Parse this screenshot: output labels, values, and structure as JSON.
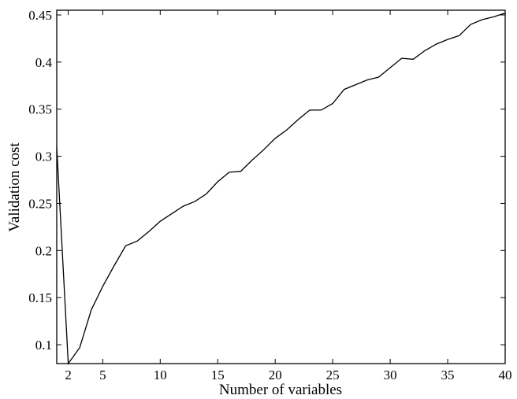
{
  "chart_data": {
    "type": "line",
    "title": "",
    "xlabel": "Number of variables",
    "ylabel": "Validation cost",
    "xlim": [
      1,
      40
    ],
    "ylim": [
      0.08,
      0.455
    ],
    "xticks": [
      2,
      5,
      10,
      15,
      20,
      25,
      30,
      35,
      40
    ],
    "yticks": [
      0.1,
      0.15,
      0.2,
      0.25,
      0.3,
      0.35,
      0.4,
      0.45
    ],
    "ytick_labels": [
      "0.1",
      "0.15",
      "0.2",
      "0.25",
      "0.3",
      "0.35",
      "0.4",
      "0.45"
    ],
    "grid": false,
    "line_color": "#000000",
    "series": [
      {
        "x": [
          1,
          2,
          3,
          4,
          5,
          6,
          7,
          8,
          9,
          10,
          11,
          12,
          13,
          14,
          15,
          16,
          17,
          18,
          19,
          20,
          21,
          22,
          23,
          24,
          25,
          26,
          27,
          28,
          29,
          30,
          31,
          32,
          33,
          34,
          35,
          36,
          37,
          38,
          39,
          40
        ],
        "values": [
          0.31,
          0.08,
          0.097,
          0.137,
          0.162,
          0.184,
          0.205,
          0.21,
          0.22,
          0.231,
          0.239,
          0.247,
          0.252,
          0.26,
          0.273,
          0.283,
          0.284,
          0.296,
          0.307,
          0.319,
          0.328,
          0.339,
          0.349,
          0.349,
          0.356,
          0.371,
          0.376,
          0.381,
          0.384,
          0.394,
          0.404,
          0.403,
          0.412,
          0.419,
          0.424,
          0.428,
          0.44,
          0.445,
          0.448,
          0.452
        ]
      }
    ]
  }
}
